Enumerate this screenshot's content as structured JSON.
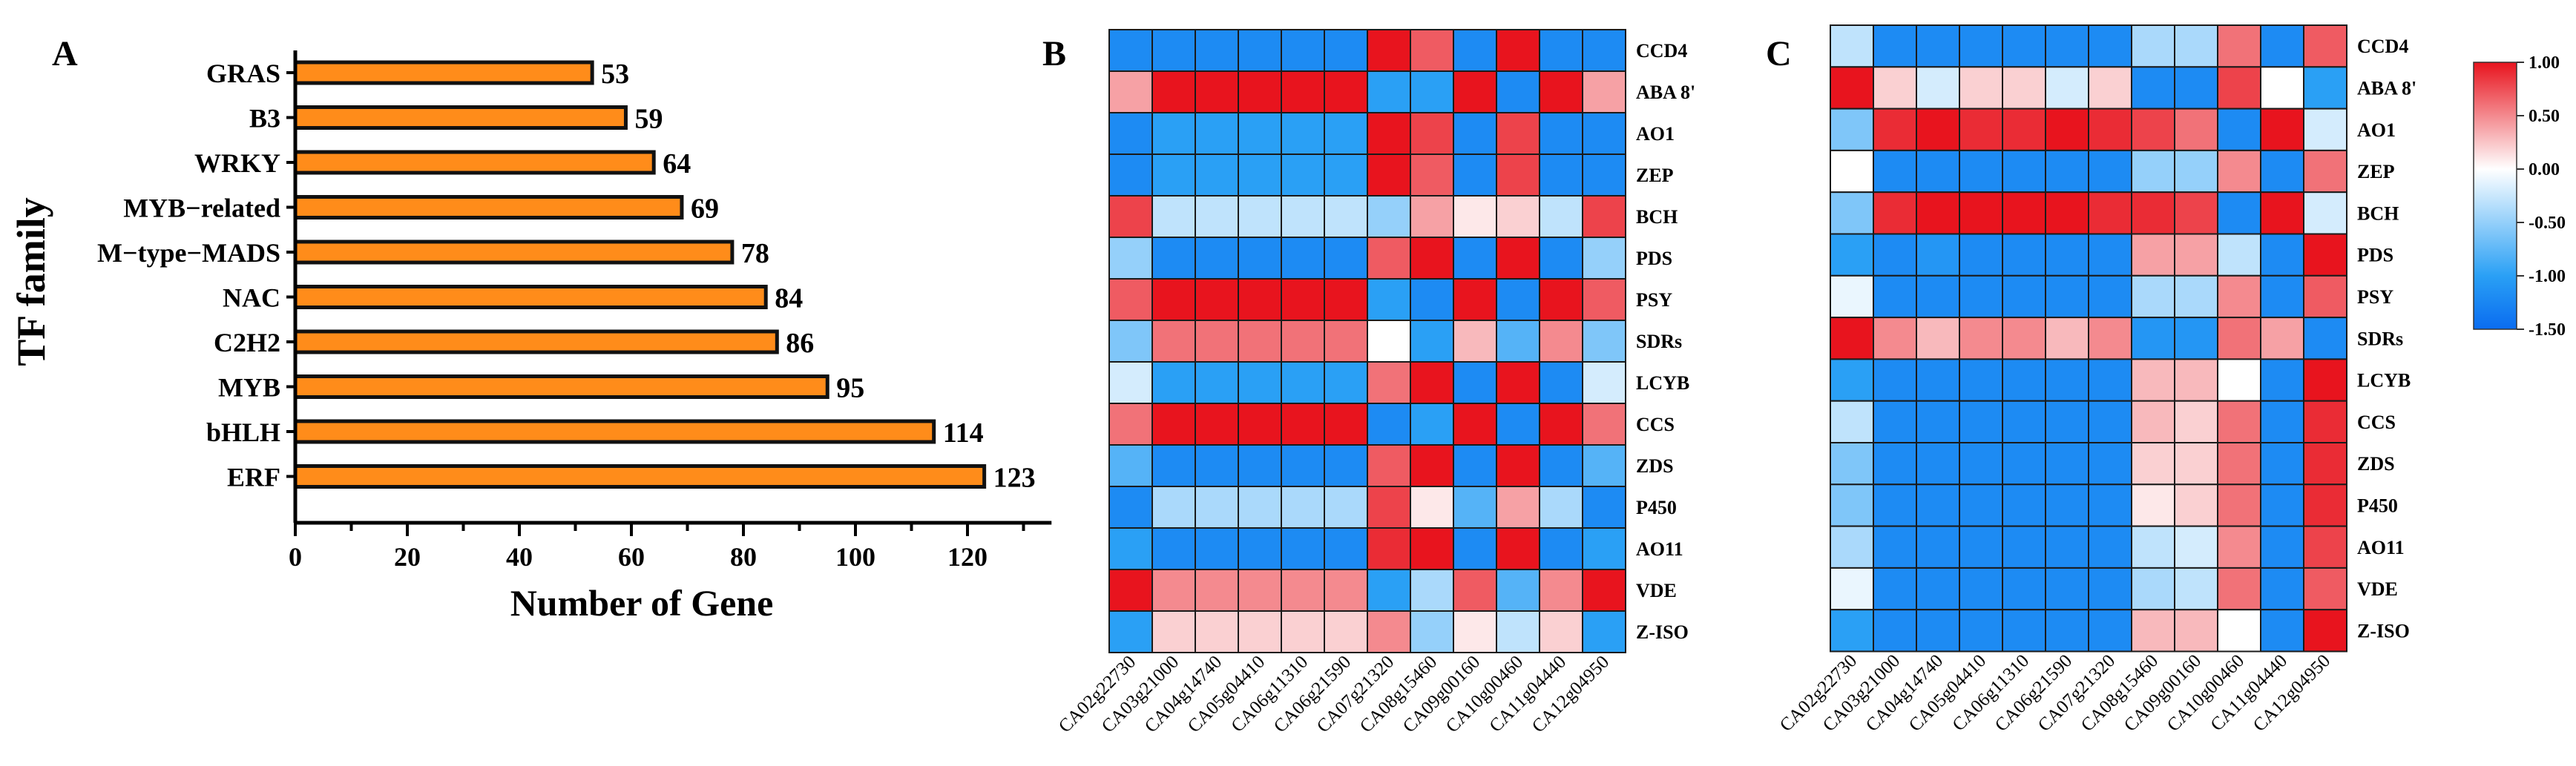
{
  "figure": {
    "panel_labels": [
      "A",
      "B",
      "C"
    ]
  },
  "chart_data": [
    {
      "type": "bar",
      "orientation": "horizontal",
      "panel": "A",
      "title": "",
      "xlabel": "Number of Gene",
      "ylabel": "TF family",
      "categories": [
        "GRAS",
        "B3",
        "WRKY",
        "MYB−related",
        "M−type−MADS",
        "NAC",
        "C2H2",
        "MYB",
        "bHLH",
        "ERF"
      ],
      "values": [
        53,
        59,
        64,
        69,
        78,
        84,
        86,
        95,
        114,
        123
      ],
      "data_labels": [
        "53",
        "59",
        "64",
        "69",
        "78",
        "84",
        "86",
        "95",
        "114",
        "123"
      ],
      "xlim": [
        0,
        135
      ],
      "xticks": [
        0,
        20,
        40,
        60,
        80,
        100,
        120
      ],
      "xtick_labels": [
        "0",
        "20",
        "40",
        "60",
        "80",
        "100",
        "120"
      ],
      "bar_color": "#ff8c1a",
      "bar_edge": "#111111"
    },
    {
      "type": "heatmap",
      "panel": "B",
      "rows": [
        "CCD4",
        "ABA 8'",
        "AO1",
        "ZEP",
        "BCH",
        "PDS",
        "PSY",
        "SDRs",
        "LCYB",
        "CCS",
        "ZDS",
        "P450",
        "AO11",
        "VDE",
        "Z-ISO"
      ],
      "columns": [
        "CA02g22730",
        "CA03g21000",
        "CA04g14740",
        "CA05g04410",
        "CA06g11310",
        "CA06g21590",
        "CA07g21320",
        "CA08g15460",
        "CA09g00160",
        "CA10g00460",
        "CA11g04440",
        "CA12g04950"
      ],
      "values": [
        [
          -1.2,
          -1.2,
          -1.2,
          -1.2,
          -1.2,
          -1.2,
          1.0,
          0.7,
          -1.2,
          1.0,
          -1.2,
          -1.2
        ],
        [
          0.4,
          1.0,
          1.0,
          1.0,
          1.0,
          1.0,
          -1.0,
          -1.0,
          1.0,
          -1.2,
          1.0,
          0.4
        ],
        [
          -1.2,
          -1.0,
          -1.0,
          -1.0,
          -1.0,
          -1.0,
          1.0,
          0.8,
          -1.2,
          0.8,
          -1.2,
          -1.2
        ],
        [
          -1.2,
          -1.0,
          -1.0,
          -1.0,
          -1.0,
          -1.0,
          1.0,
          0.7,
          -1.2,
          0.8,
          -1.2,
          -1.2
        ],
        [
          0.8,
          -0.3,
          -0.3,
          -0.3,
          -0.3,
          -0.3,
          -0.5,
          0.4,
          0.1,
          0.2,
          -0.3,
          0.8
        ],
        [
          -0.5,
          -1.2,
          -1.2,
          -1.2,
          -1.2,
          -1.2,
          0.7,
          1.0,
          -1.2,
          1.0,
          -1.2,
          -0.5
        ],
        [
          0.7,
          1.0,
          1.0,
          1.0,
          1.0,
          1.0,
          -1.0,
          -1.2,
          1.0,
          -1.2,
          1.0,
          0.7
        ],
        [
          -0.6,
          0.6,
          0.6,
          0.6,
          0.6,
          0.6,
          0.0,
          -1.0,
          0.3,
          -0.8,
          0.5,
          -0.6
        ],
        [
          -0.2,
          -1.0,
          -1.0,
          -1.0,
          -1.0,
          -1.0,
          0.6,
          1.0,
          -1.2,
          1.0,
          -1.2,
          -0.2
        ],
        [
          0.6,
          1.0,
          1.0,
          1.0,
          1.0,
          1.0,
          -1.2,
          -1.0,
          1.0,
          -1.2,
          1.0,
          0.6
        ],
        [
          -0.8,
          -1.2,
          -1.2,
          -1.2,
          -1.2,
          -1.2,
          0.7,
          1.0,
          -1.2,
          1.0,
          -1.2,
          -0.8
        ],
        [
          -1.2,
          -0.4,
          -0.4,
          -0.4,
          -0.4,
          -0.4,
          0.8,
          0.1,
          -0.8,
          0.4,
          -0.4,
          -1.2
        ],
        [
          -1.0,
          -1.2,
          -1.2,
          -1.2,
          -1.2,
          -1.2,
          0.9,
          1.0,
          -1.2,
          1.0,
          -1.2,
          -1.0
        ],
        [
          1.0,
          0.5,
          0.5,
          0.5,
          0.5,
          0.5,
          -1.0,
          -0.4,
          0.7,
          -0.8,
          0.5,
          1.0
        ],
        [
          -1.0,
          0.2,
          0.2,
          0.2,
          0.2,
          0.2,
          0.5,
          -0.5,
          0.1,
          -0.3,
          0.2,
          -1.0
        ]
      ]
    },
    {
      "type": "heatmap",
      "panel": "C",
      "rows": [
        "CCD4",
        "ABA 8'",
        "AO1",
        "ZEP",
        "BCH",
        "PDS",
        "PSY",
        "SDRs",
        "LCYB",
        "CCS",
        "ZDS",
        "P450",
        "AO11",
        "VDE",
        "Z-ISO"
      ],
      "columns": [
        "CA02g22730",
        "CA03g21000",
        "CA04g14740",
        "CA05g04410",
        "CA06g11310",
        "CA06g21590",
        "CA07g21320",
        "CA08g15460",
        "CA09g00160",
        "CA10g00460",
        "CA11g04440",
        "CA12g04950"
      ],
      "values": [
        [
          -0.3,
          -1.2,
          -1.2,
          -1.2,
          -1.2,
          -1.2,
          -1.2,
          -0.4,
          -0.4,
          0.6,
          -1.2,
          0.7
        ],
        [
          1.0,
          0.2,
          -0.2,
          0.2,
          0.2,
          -0.2,
          0.2,
          -1.2,
          -1.2,
          0.8,
          0.0,
          -1.0
        ],
        [
          -0.6,
          0.9,
          1.0,
          0.9,
          0.9,
          1.0,
          0.9,
          0.8,
          0.6,
          -1.2,
          1.0,
          -0.2
        ],
        [
          0.0,
          -1.2,
          -1.2,
          -1.2,
          -1.2,
          -1.2,
          -1.2,
          -0.5,
          -0.5,
          0.5,
          -1.2,
          0.6
        ],
        [
          -0.6,
          0.9,
          1.0,
          1.0,
          1.0,
          1.0,
          0.9,
          0.9,
          0.8,
          -1.2,
          1.0,
          -0.2
        ],
        [
          -1.0,
          -1.2,
          -1.1,
          -1.2,
          -1.2,
          -1.2,
          -1.2,
          0.4,
          0.4,
          -0.3,
          -1.2,
          1.0
        ],
        [
          -0.1,
          -1.2,
          -1.2,
          -1.2,
          -1.2,
          -1.2,
          -1.2,
          -0.4,
          -0.4,
          0.5,
          -1.2,
          0.7
        ],
        [
          1.0,
          0.5,
          0.3,
          0.5,
          0.5,
          0.3,
          0.5,
          -1.1,
          -1.1,
          0.6,
          0.4,
          -1.2
        ],
        [
          -1.0,
          -1.2,
          -1.2,
          -1.2,
          -1.2,
          -1.2,
          -1.2,
          0.3,
          0.3,
          0.0,
          -1.2,
          1.0
        ],
        [
          -0.3,
          -1.2,
          -1.2,
          -1.2,
          -1.2,
          -1.2,
          -1.2,
          0.3,
          0.2,
          0.6,
          -1.2,
          0.9
        ],
        [
          -0.6,
          -1.2,
          -1.2,
          -1.2,
          -1.2,
          -1.2,
          -1.2,
          0.2,
          0.2,
          0.6,
          -1.2,
          0.9
        ],
        [
          -0.6,
          -1.2,
          -1.2,
          -1.2,
          -1.2,
          -1.2,
          -1.2,
          0.1,
          0.2,
          0.6,
          -1.2,
          0.9
        ],
        [
          -0.4,
          -1.2,
          -1.2,
          -1.2,
          -1.2,
          -1.2,
          -1.2,
          -0.3,
          -0.2,
          0.5,
          -1.2,
          0.8
        ],
        [
          -0.1,
          -1.2,
          -1.2,
          -1.2,
          -1.2,
          -1.2,
          -1.2,
          -0.4,
          -0.3,
          0.6,
          -1.2,
          0.7
        ],
        [
          -1.0,
          -1.2,
          -1.2,
          -1.2,
          -1.2,
          -1.2,
          -1.2,
          0.3,
          0.3,
          0.0,
          -1.2,
          1.0
        ]
      ]
    }
  ],
  "colorbar": {
    "min": -1.5,
    "max": 1.0,
    "ticks": [
      1.0,
      0.5,
      0.0,
      -0.5,
      -1.0,
      -1.5
    ],
    "tick_labels": [
      "1.00",
      "0.50",
      "0.00",
      "-0.50",
      "-1.00",
      "-1.50"
    ],
    "colors": {
      "low": "#0a6cf0",
      "mid": "#ffffff",
      "high": "#e8141e"
    }
  }
}
